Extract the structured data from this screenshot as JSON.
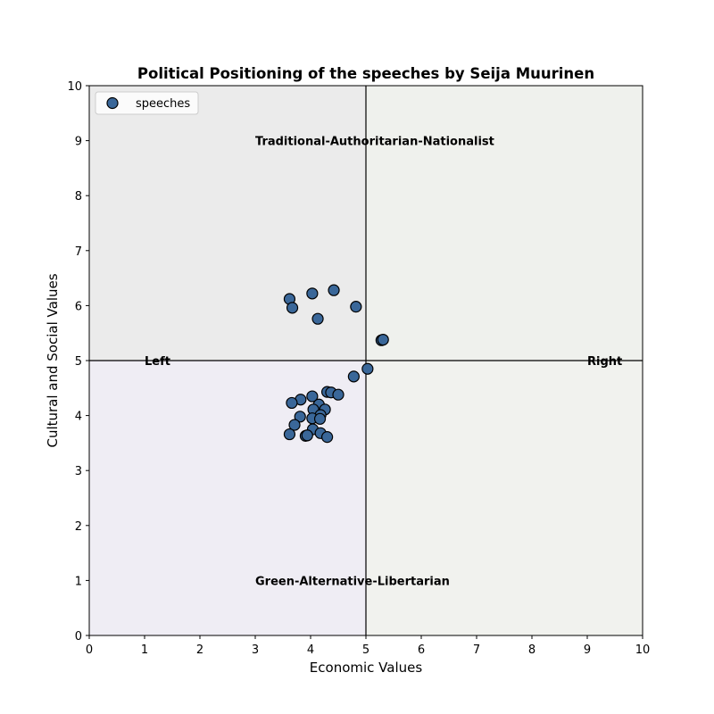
{
  "chart_data": {
    "type": "scatter",
    "title": "Political Positioning of the speeches by Seija Muurinen",
    "xlabel": "Economic Values",
    "ylabel": "Cultural and Social Values",
    "xlim": [
      0,
      10
    ],
    "ylim": [
      0,
      10
    ],
    "xticks": [
      0,
      1,
      2,
      3,
      4,
      5,
      6,
      7,
      8,
      9,
      10
    ],
    "yticks": [
      0,
      1,
      2,
      3,
      4,
      5,
      6,
      7,
      8,
      9,
      10
    ],
    "grid": false,
    "legend": {
      "position": "top-left",
      "entries": [
        "speeches"
      ]
    },
    "quadrant_colors": {
      "top-left": "#ebebeb",
      "top-right": "#eff1ed",
      "bottom-left": "#efedf4",
      "bottom-right": "#f1f2ee"
    },
    "marker_color": "#3a6799",
    "marker_edge_color": "#000000",
    "center_lines": {
      "x": 5,
      "y": 5
    },
    "annotations": [
      {
        "text": "Traditional-Authoritarian-Nationalist",
        "x": 3.0,
        "y": 9.0
      },
      {
        "text": "Green-Alternative-Libertarian",
        "x": 3.0,
        "y": 1.0
      },
      {
        "text": "Left",
        "x": 1.0,
        "y": 5.0
      },
      {
        "text": "Right",
        "x": 9.0,
        "y": 5.0
      }
    ],
    "series": [
      {
        "name": "speeches",
        "points": [
          {
            "x": 3.62,
            "y": 6.12
          },
          {
            "x": 4.03,
            "y": 6.22
          },
          {
            "x": 4.42,
            "y": 6.28
          },
          {
            "x": 3.67,
            "y": 5.96
          },
          {
            "x": 4.82,
            "y": 5.98
          },
          {
            "x": 4.13,
            "y": 5.76
          },
          {
            "x": 5.28,
            "y": 5.37
          },
          {
            "x": 5.31,
            "y": 5.38
          },
          {
            "x": 5.03,
            "y": 4.85
          },
          {
            "x": 4.78,
            "y": 4.71
          },
          {
            "x": 4.3,
            "y": 4.43
          },
          {
            "x": 4.37,
            "y": 4.42
          },
          {
            "x": 4.5,
            "y": 4.38
          },
          {
            "x": 4.03,
            "y": 4.35
          },
          {
            "x": 3.82,
            "y": 4.29
          },
          {
            "x": 3.66,
            "y": 4.23
          },
          {
            "x": 4.15,
            "y": 4.2
          },
          {
            "x": 4.05,
            "y": 4.11
          },
          {
            "x": 4.26,
            "y": 4.11
          },
          {
            "x": 4.18,
            "y": 4.01
          },
          {
            "x": 3.81,
            "y": 3.98
          },
          {
            "x": 4.03,
            "y": 3.95
          },
          {
            "x": 4.17,
            "y": 3.94
          },
          {
            "x": 3.71,
            "y": 3.83
          },
          {
            "x": 4.04,
            "y": 3.75
          },
          {
            "x": 4.18,
            "y": 3.68
          },
          {
            "x": 3.62,
            "y": 3.66
          },
          {
            "x": 3.91,
            "y": 3.63
          },
          {
            "x": 3.94,
            "y": 3.64
          },
          {
            "x": 4.3,
            "y": 3.61
          }
        ]
      }
    ]
  }
}
